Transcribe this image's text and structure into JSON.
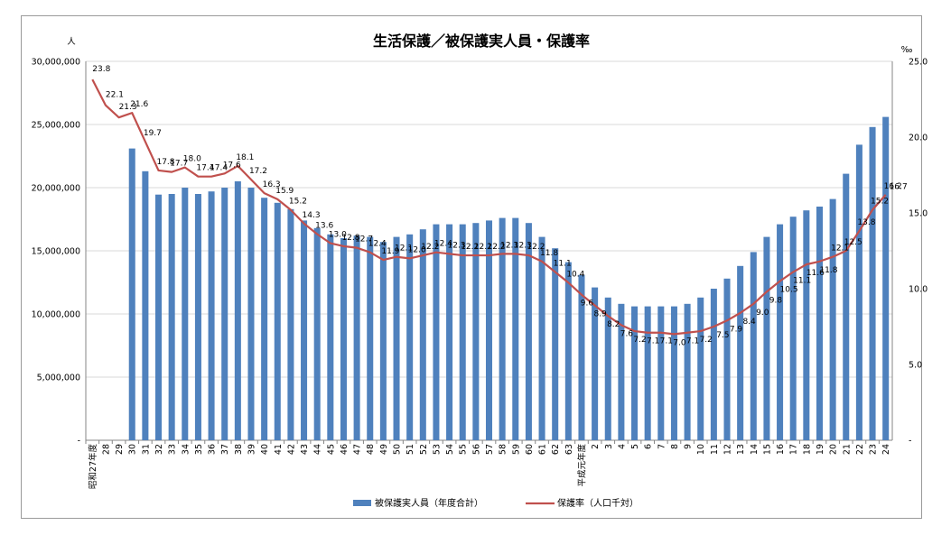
{
  "chart_data": {
    "type": "bar+line",
    "title": "生活保護／被保護実人員・保護率",
    "y_left_unit": "人",
    "y_right_unit": "‰",
    "y_left_range": [
      0,
      30000000
    ],
    "y_right_range": [
      0,
      25
    ],
    "y_left_ticks": [
      "-",
      "5,000,000",
      "10,000,000",
      "15,000,000",
      "20,000,000",
      "25,000,000",
      "30,000,000"
    ],
    "y_right_ticks": [
      "-",
      "5.0",
      "10.0",
      "15.0",
      "20.0",
      "25.0"
    ],
    "categories": [
      "昭和27年度",
      "28",
      "29",
      "30",
      "31",
      "32",
      "33",
      "34",
      "35",
      "36",
      "37",
      "38",
      "39",
      "40",
      "41",
      "42",
      "43",
      "44",
      "45",
      "46",
      "47",
      "48",
      "49",
      "50",
      "51",
      "52",
      "53",
      "54",
      "55",
      "56",
      "57",
      "58",
      "59",
      "60",
      "61",
      "62",
      "63",
      "平成元年度",
      "2",
      "3",
      "4",
      "5",
      "6",
      "7",
      "8",
      "9",
      "10",
      "11",
      "12",
      "13",
      "14",
      "15",
      "16",
      "17",
      "18",
      "19",
      "20",
      "21",
      "22",
      "23",
      "24"
    ],
    "series": [
      {
        "name": "被保護実人員（年度合計）",
        "type": "bar",
        "axis": "left",
        "color": "#4f81bd",
        "values": [
          null,
          null,
          null,
          23100000,
          21300000,
          19450000,
          19500000,
          20000000,
          19500000,
          19700000,
          20000000,
          20500000,
          20000000,
          19200000,
          18800000,
          18300000,
          17400000,
          16800000,
          16300000,
          16000000,
          16200000,
          16100000,
          15700000,
          16100000,
          16300000,
          16700000,
          17100000,
          17100000,
          17100000,
          17200000,
          17400000,
          17600000,
          17600000,
          17200000,
          16100000,
          15200000,
          14100000,
          13100000,
          12100000,
          11300000,
          10800000,
          10600000,
          10600000,
          10600000,
          10600000,
          10800000,
          11300000,
          12000000,
          12800000,
          13800000,
          14900000,
          16100000,
          17100000,
          17700000,
          18200000,
          18500000,
          19100000,
          21100000,
          23400000,
          24800000,
          25600000
        ]
      },
      {
        "name": "保護率（人口千対）",
        "type": "line",
        "axis": "right",
        "color": "#c0504d",
        "values": [
          23.8,
          22.1,
          21.3,
          21.6,
          19.7,
          17.8,
          17.7,
          18.0,
          17.4,
          17.4,
          17.6,
          18.1,
          17.2,
          16.3,
          15.9,
          15.2,
          14.3,
          13.6,
          13.0,
          12.8,
          12.7,
          12.4,
          11.9,
          12.1,
          12.0,
          12.2,
          12.4,
          12.3,
          12.2,
          12.2,
          12.2,
          12.3,
          12.3,
          12.2,
          11.8,
          11.1,
          10.4,
          9.6,
          8.9,
          8.2,
          7.6,
          7.2,
          7.1,
          7.1,
          7.0,
          7.1,
          7.2,
          7.5,
          7.9,
          8.4,
          9.0,
          9.8,
          10.5,
          11.1,
          11.6,
          11.8,
          12.1,
          12.5,
          13.8,
          15.2,
          16.2
        ],
        "labels": [
          "23.8",
          "22.1",
          "21.3",
          "21.6",
          "19.7",
          "17.8",
          "17.7",
          "18.0",
          "17.4",
          "17.4",
          "17.6",
          "18.1",
          "17.2",
          "16.3",
          "15.9",
          "15.2",
          "14.3",
          "13.6",
          "13.0",
          "12.8",
          "12.7",
          "12.4",
          "11.9",
          "12.1",
          "12.0",
          "12.2",
          "12.4",
          "12.3",
          "12.2",
          "12.2",
          "12.2",
          "12.3",
          "12.3",
          "12.2",
          "11.8",
          "11.1",
          "10.4",
          "9.6",
          "8.9",
          "8.2",
          "7.6",
          "7.2",
          "7.1",
          "7.1",
          "7.0",
          "7.1",
          "7.2",
          "7.5",
          "7.9",
          "8.4",
          "9.0",
          "9.8",
          "10.5",
          "11.1",
          "11.6",
          "11.8",
          "12.1",
          "12.5",
          "13.8",
          "15.2",
          "16.2"
        ]
      }
    ],
    "extra_label": "16.7",
    "legend_position": "bottom"
  }
}
